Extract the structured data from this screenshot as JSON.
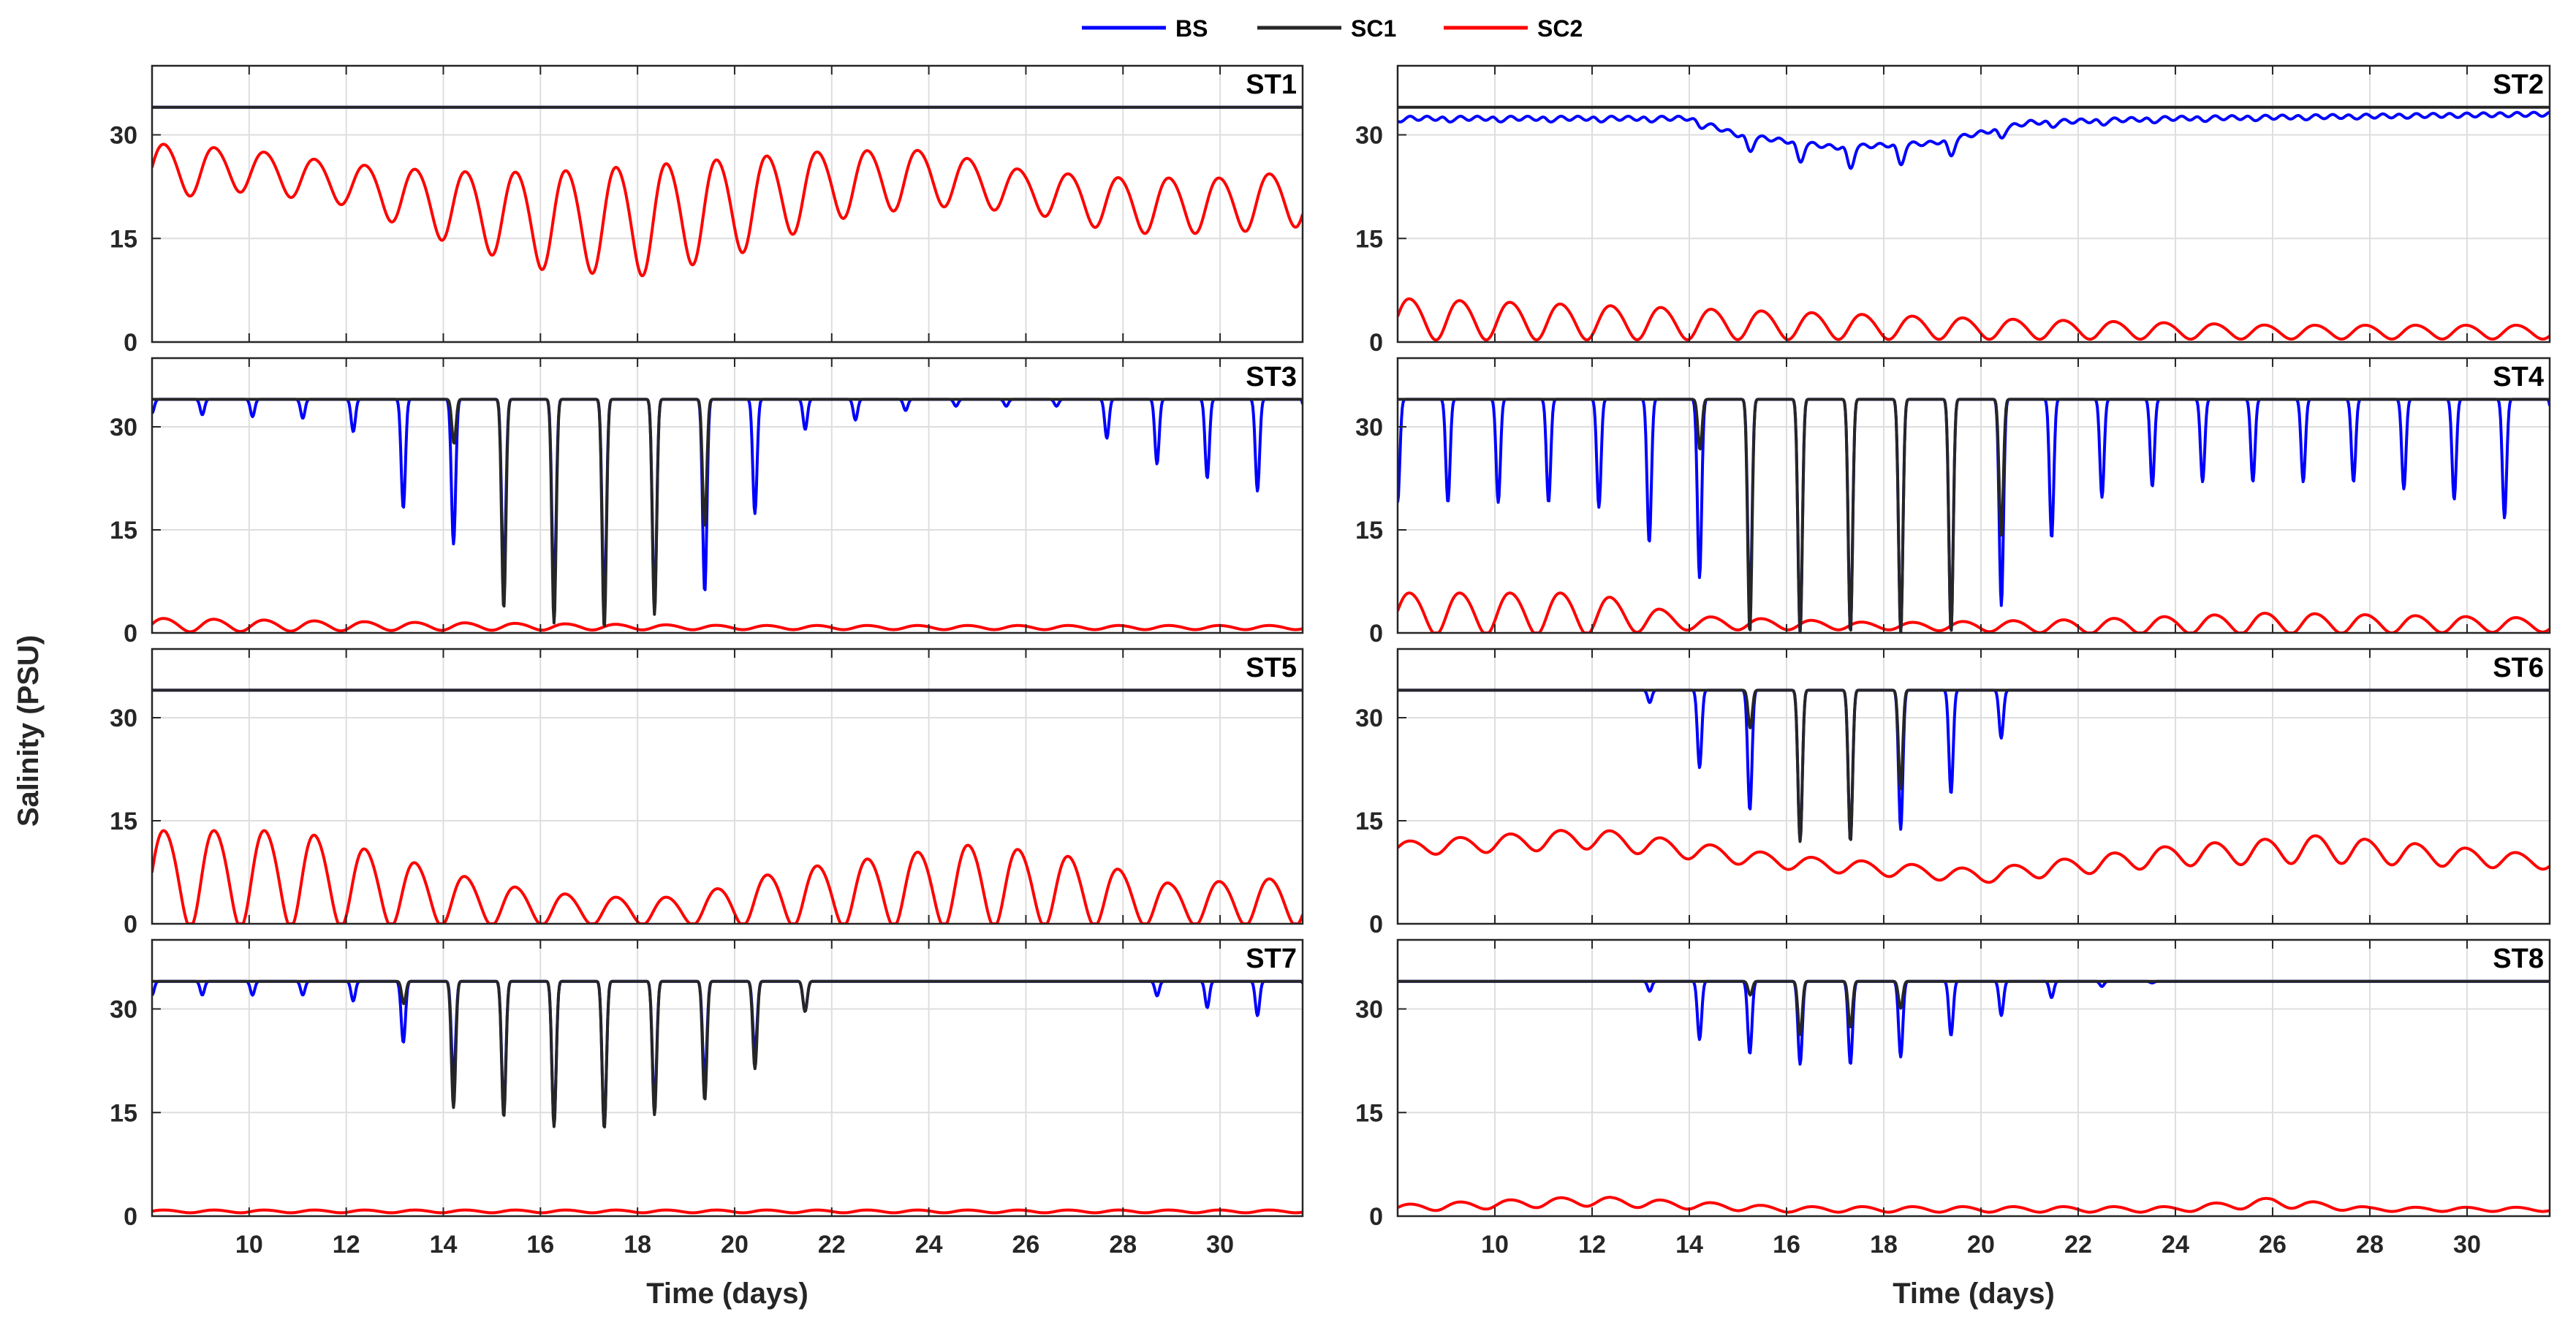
{
  "legend": [
    {
      "name": "BS",
      "color": "#0000ff"
    },
    {
      "name": "SC1",
      "color": "#262626"
    },
    {
      "name": "SC2",
      "color": "#ff0000"
    }
  ],
  "chart_data": {
    "type": "line",
    "ylabel": "Salinity (PSU)",
    "xlabel": "Time (days)",
    "xlim": [
      8,
      31.7
    ],
    "ylim": [
      0,
      40
    ],
    "xticks": [
      10,
      12,
      14,
      16,
      18,
      20,
      22,
      24,
      26,
      28,
      30
    ],
    "yticks": [
      0,
      15,
      30
    ],
    "grid": true,
    "panels": [
      {
        "name": "ST1",
        "BS": {
          "base": 34,
          "kind": "flat"
        },
        "SC1": {
          "base": 34,
          "kind": "flat"
        },
        "SC2": {
          "kind": "tidal",
          "envelope": [
            [
              8,
              25,
              4
            ],
            [
              10,
              25,
              3
            ],
            [
              12,
              23,
              3
            ],
            [
              14,
              20,
              5
            ],
            [
              16,
              18,
              7
            ],
            [
              18,
              18,
              8
            ],
            [
              20,
              20,
              7
            ],
            [
              22,
              23,
              5
            ],
            [
              24,
              24,
              4
            ],
            [
              26,
              22,
              3
            ],
            [
              28,
              20,
              4
            ],
            [
              30,
              20,
              4
            ],
            [
              31.7,
              21,
              4
            ]
          ]
        }
      },
      {
        "name": "ST2",
        "BS": {
          "kind": "dip",
          "base": 33,
          "envelope": [
            [
              8,
              1
            ],
            [
              14,
              1
            ],
            [
              15,
              5
            ],
            [
              17,
              8
            ],
            [
              19,
              7
            ],
            [
              21,
              2
            ],
            [
              24,
              1
            ],
            [
              31.7,
              0
            ]
          ]
        },
        "SC1": {
          "base": 34,
          "kind": "flat"
        },
        "SC2": {
          "kind": "tidal",
          "envelope": [
            [
              8,
              3.5,
              3
            ],
            [
              12,
              3,
              2.5
            ],
            [
              16,
              2.5,
              2
            ],
            [
              20,
              2,
              1.5
            ],
            [
              26,
              1.5,
              1
            ],
            [
              31.7,
              1.5,
              1
            ]
          ]
        }
      },
      {
        "name": "ST3",
        "BS": {
          "kind": "spikes",
          "base": 34,
          "depth": [
            [
              8,
              2
            ],
            [
              12,
              3
            ],
            [
              13,
              15
            ],
            [
              15,
              25
            ],
            [
              17,
              30
            ],
            [
              19,
              30
            ],
            [
              20,
              25
            ],
            [
              21,
              5
            ],
            [
              24,
              1
            ],
            [
              27,
              1
            ],
            [
              28,
              8
            ],
            [
              30,
              12
            ],
            [
              31.7,
              15
            ]
          ]
        },
        "SC1": {
          "kind": "spikes",
          "base": 34,
          "depth": [
            [
              8,
              0
            ],
            [
              14,
              0
            ],
            [
              15,
              30
            ],
            [
              17,
              34
            ],
            [
              19,
              30
            ],
            [
              20,
              0
            ],
            [
              31.7,
              0
            ]
          ]
        },
        "SC2": {
          "kind": "tidal",
          "envelope": [
            [
              8,
              1.2,
              1
            ],
            [
              13,
              1,
              0.6
            ],
            [
              20,
              0.8,
              0.3
            ],
            [
              31.7,
              0.8,
              0.3
            ]
          ]
        }
      },
      {
        "name": "ST4",
        "BS": {
          "kind": "spikes",
          "base": 34,
          "depth": [
            [
              8,
              15
            ],
            [
              12,
              15
            ],
            [
              14,
              25
            ],
            [
              16,
              34
            ],
            [
              18,
              34
            ],
            [
              20,
              34
            ],
            [
              22,
              15
            ],
            [
              24,
              12
            ],
            [
              26,
              12
            ],
            [
              28,
              12
            ],
            [
              30,
              15
            ],
            [
              31.7,
              20
            ]
          ]
        },
        "SC1": {
          "kind": "spikes",
          "base": 34,
          "depth": [
            [
              8,
              0
            ],
            [
              14,
              0
            ],
            [
              15,
              34
            ],
            [
              20,
              34
            ],
            [
              21,
              0
            ],
            [
              31.7,
              0
            ]
          ]
        },
        "SC2": {
          "kind": "tidal",
          "envelope": [
            [
              8,
              3,
              3
            ],
            [
              12,
              3,
              3
            ],
            [
              14,
              1.5,
              1
            ],
            [
              18,
              1,
              0.5
            ],
            [
              22,
              1,
              1
            ],
            [
              26,
              1.5,
              1.5
            ],
            [
              31.7,
              1.2,
              1
            ]
          ]
        }
      },
      {
        "name": "ST5",
        "BS": {
          "base": 34,
          "kind": "flat"
        },
        "SC1": {
          "base": 34,
          "kind": "flat"
        },
        "SC2": {
          "kind": "tidal",
          "envelope": [
            [
              8,
              7,
              7
            ],
            [
              11,
              7,
              7
            ],
            [
              13,
              5,
              5
            ],
            [
              15,
              3,
              3
            ],
            [
              17,
              2,
              2
            ],
            [
              19,
              2,
              2
            ],
            [
              21,
              4,
              4
            ],
            [
              23,
              5,
              5
            ],
            [
              25,
              6,
              6
            ],
            [
              27,
              5,
              5
            ],
            [
              29,
              3,
              3
            ],
            [
              31.7,
              3.5,
              3.5
            ]
          ]
        }
      },
      {
        "name": "ST6",
        "BS": {
          "kind": "spikes",
          "base": 34,
          "depth": [
            [
              8,
              0
            ],
            [
              13,
              0
            ],
            [
              14,
              10
            ],
            [
              16,
              22
            ],
            [
              18,
              22
            ],
            [
              20,
              12
            ],
            [
              21,
              0
            ],
            [
              31.7,
              0
            ]
          ]
        },
        "SC1": {
          "kind": "spikes",
          "base": 34,
          "depth": [
            [
              8,
              0
            ],
            [
              15,
              0
            ],
            [
              16,
              22
            ],
            [
              18,
              22
            ],
            [
              19,
              0
            ],
            [
              31.7,
              0
            ]
          ]
        },
        "SC2": {
          "kind": "tidal",
          "envelope": [
            [
              8,
              11,
              1
            ],
            [
              12,
              12.5,
              1.5
            ],
            [
              16,
              9,
              1
            ],
            [
              20,
              7,
              1
            ],
            [
              24,
              10,
              1.5
            ],
            [
              27,
              11,
              2
            ],
            [
              31.7,
              9,
              1
            ]
          ]
        }
      },
      {
        "name": "ST7",
        "BS": {
          "kind": "spikes",
          "base": 34,
          "depth": [
            [
              8,
              2
            ],
            [
              12,
              2
            ],
            [
              13,
              8
            ],
            [
              15,
              18
            ],
            [
              17,
              22
            ],
            [
              19,
              16
            ],
            [
              21,
              8
            ],
            [
              22,
              0
            ],
            [
              28,
              0
            ],
            [
              29,
              3
            ],
            [
              31.7,
              6
            ]
          ]
        },
        "SC1": {
          "kind": "spikes",
          "base": 34,
          "depth": [
            [
              8,
              0
            ],
            [
              13,
              0
            ],
            [
              14,
              18
            ],
            [
              17,
              22
            ],
            [
              20,
              16
            ],
            [
              22,
              0
            ],
            [
              31.7,
              0
            ]
          ]
        },
        "SC2": {
          "kind": "tidal",
          "envelope": [
            [
              8,
              0.7,
              0.2
            ],
            [
              31.7,
              0.7,
              0.2
            ]
          ]
        }
      },
      {
        "name": "ST8",
        "BS": {
          "kind": "spikes",
          "base": 34,
          "depth": [
            [
              8,
              0
            ],
            [
              13,
              0
            ],
            [
              14,
              8
            ],
            [
              16,
              12
            ],
            [
              18,
              12
            ],
            [
              20,
              6
            ],
            [
              22,
              1
            ],
            [
              24,
              0
            ],
            [
              31.7,
              0
            ]
          ]
        },
        "SC1": {
          "kind": "spikes",
          "base": 34,
          "depth": [
            [
              8,
              0
            ],
            [
              15,
              0
            ],
            [
              16,
              8
            ],
            [
              18,
              6
            ],
            [
              19,
              0
            ],
            [
              31.7,
              0
            ]
          ]
        },
        "SC2": {
          "kind": "tidal",
          "envelope": [
            [
              8,
              1.2,
              0.5
            ],
            [
              12,
              2.2,
              0.7
            ],
            [
              16,
              1,
              0.4
            ],
            [
              24,
              1,
              0.4
            ],
            [
              26,
              2,
              0.7
            ],
            [
              28,
              1,
              0.3
            ],
            [
              31.7,
              1,
              0.3
            ]
          ]
        }
      }
    ]
  }
}
